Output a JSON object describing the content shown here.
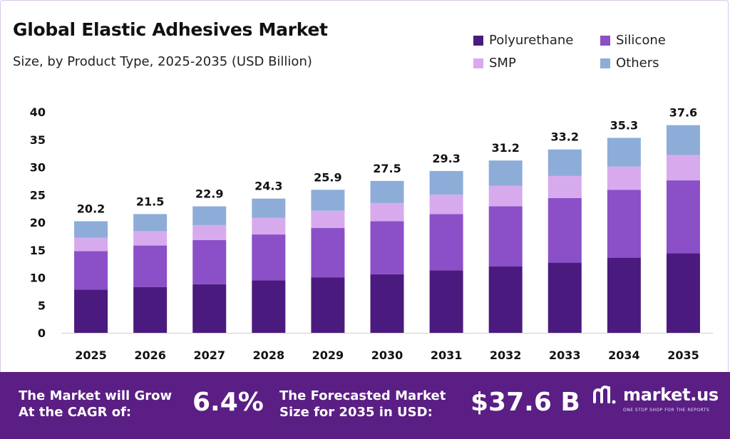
{
  "header": {
    "title": "Global Elastic Adhesives Market",
    "subtitle": "Size, by Product Type, 2025-2035 (USD Billion)"
  },
  "chart_data": {
    "type": "bar",
    "stacked": true,
    "categories": [
      "2025",
      "2026",
      "2027",
      "2028",
      "2029",
      "2030",
      "2031",
      "2032",
      "2033",
      "2034",
      "2035"
    ],
    "series": [
      {
        "name": "Polyurethane",
        "color": "#4b1a7e",
        "values": [
          7.8,
          8.3,
          8.8,
          9.5,
          10.0,
          10.6,
          11.3,
          12.0,
          12.7,
          13.6,
          14.4
        ]
      },
      {
        "name": "Silicone",
        "color": "#8b4fc7",
        "values": [
          7.0,
          7.5,
          8.0,
          8.3,
          9.0,
          9.6,
          10.2,
          10.9,
          11.7,
          12.3,
          13.2
        ]
      },
      {
        "name": "SMP",
        "color": "#d7aaee",
        "values": [
          2.4,
          2.6,
          2.7,
          3.0,
          3.1,
          3.3,
          3.5,
          3.7,
          4.0,
          4.2,
          4.6
        ]
      },
      {
        "name": "Others",
        "color": "#8eacd8",
        "values": [
          3.0,
          3.1,
          3.4,
          3.5,
          3.8,
          4.0,
          4.3,
          4.6,
          4.8,
          5.2,
          5.4
        ]
      }
    ],
    "totals": [
      "20.2",
      "21.5",
      "22.9",
      "24.3",
      "25.9",
      "27.5",
      "29.3",
      "31.2",
      "33.2",
      "35.3",
      "37.6"
    ],
    "ylim": [
      0,
      40
    ],
    "yticks": [
      "0",
      "5",
      "10",
      "15",
      "20",
      "25",
      "30",
      "35",
      "40"
    ],
    "grid": false,
    "legend_position": "top-right"
  },
  "footer": {
    "cagr_label_line1": "The Market will Grow",
    "cagr_label_line2": "At the CAGR of:",
    "cagr_value": "6.4%",
    "forecast_label_line1": "The Forecasted Market",
    "forecast_label_line2": "Size for 2035 in USD:",
    "forecast_value": "$37.6 B",
    "brand": "market.us",
    "brand_tagline": "ONE STOP SHOP FOR THE REPORTS",
    "brand_icon": "market-us-logo-icon"
  }
}
